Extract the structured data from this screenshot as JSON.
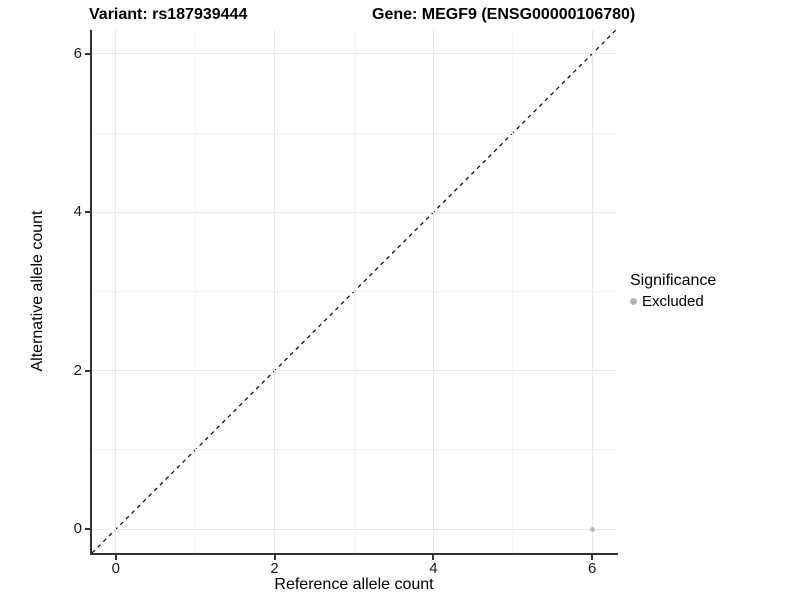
{
  "chart_data": {
    "type": "scatter",
    "title_left": "Variant: rs187939444",
    "title_right": "Gene: MEGF9 (ENSG00000106780)",
    "xlabel": "Reference allele count",
    "ylabel": "Alternative allele count",
    "xlim": [
      -0.3,
      6.3
    ],
    "ylim": [
      -0.3,
      6.3
    ],
    "x_ticks": [
      0,
      2,
      4,
      6
    ],
    "y_ticks": [
      0,
      2,
      4,
      6
    ],
    "minor_grid": [
      1,
      3,
      5
    ],
    "grid": true,
    "points": [
      {
        "x": 6,
        "y": 0,
        "series": "Excluded"
      }
    ],
    "reference_line": {
      "type": "identity",
      "style": "dashed",
      "color": "#000000"
    },
    "legend": {
      "title": "Significance",
      "position": "right",
      "entries": [
        {
          "label": "Excluded",
          "color": "#b4b4b4"
        }
      ]
    },
    "colors": {
      "point_excluded": "#b9b9b9",
      "grid_major": "#e8e8e8",
      "grid_minor": "#f3f3f3",
      "axis": "#333333",
      "text": "#000000",
      "background": "#ffffff"
    }
  }
}
